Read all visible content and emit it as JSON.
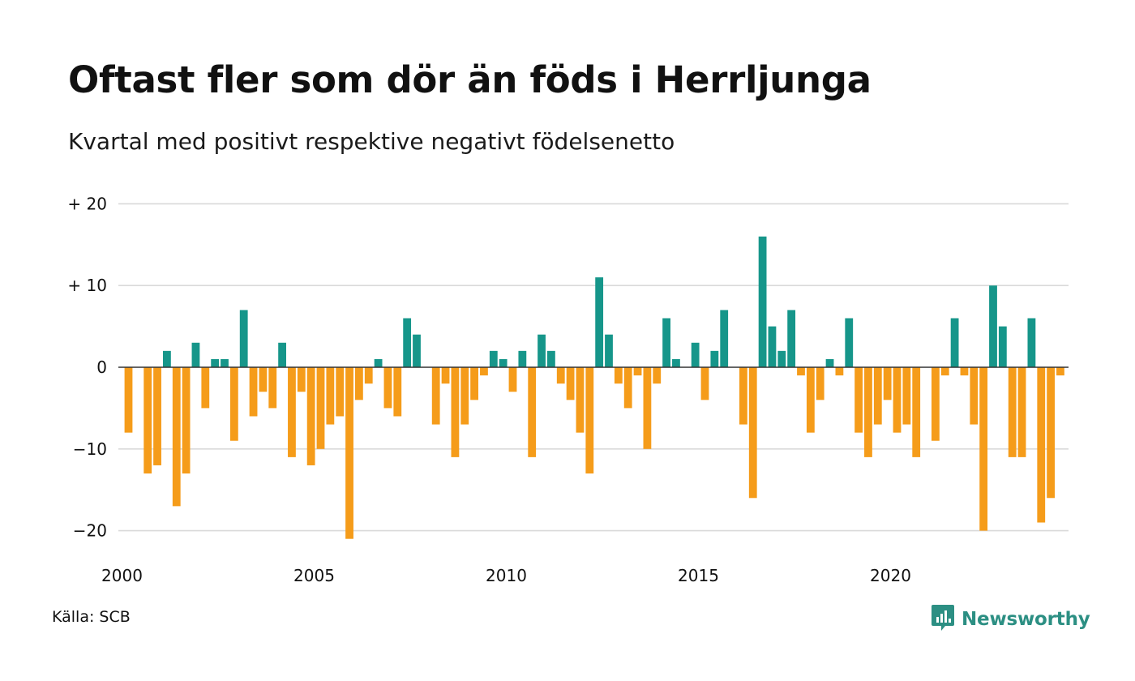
{
  "title": "Oftast fler som dör än föds i Herrljunga",
  "subtitle": "Kvartal med positivt respektive negativt födelsenetto",
  "source": "Källa: SCB",
  "brand": {
    "name": "Newsworthy",
    "icon": "newsworthy-logo-icon"
  },
  "colors": {
    "positive": "#16968a",
    "negative": "#f59c1a",
    "grid": "#d9d9d9",
    "zero": "#333333",
    "brand": "#2c8f83"
  },
  "chart_data": {
    "type": "bar",
    "title": "Oftast fler som dör än föds i Herrljunga",
    "subtitle": "Kvartal med positivt respektive negativt födelsenetto",
    "xlabel": "",
    "ylabel": "",
    "start_year": 2000,
    "xticks": [
      "2000",
      "2005",
      "2010",
      "2015",
      "2020"
    ],
    "yticks": [
      {
        "value": 20,
        "label": "+ 20"
      },
      {
        "value": 10,
        "label": "+ 10"
      },
      {
        "value": 0,
        "label": "0"
      },
      {
        "value": -10,
        "label": "−10"
      },
      {
        "value": -20,
        "label": "−20"
      }
    ],
    "ylim": [
      -21,
      20
    ],
    "grid": true,
    "values": [
      -8,
      0,
      -13,
      -12,
      2,
      -17,
      -13,
      3,
      -5,
      1,
      1,
      -9,
      7,
      -6,
      -3,
      -5,
      3,
      -11,
      -3,
      -12,
      -10,
      -7,
      -6,
      -21,
      -4,
      -2,
      1,
      -5,
      -6,
      6,
      4,
      0,
      -7,
      -2,
      -11,
      -7,
      -4,
      -1,
      2,
      1,
      -3,
      2,
      -11,
      4,
      2,
      -2,
      -4,
      -8,
      -13,
      11,
      4,
      -2,
      -5,
      -1,
      -10,
      -2,
      6,
      1,
      0,
      3,
      -4,
      2,
      7,
      0,
      -7,
      -16,
      16,
      5,
      2,
      7,
      -1,
      -8,
      -4,
      1,
      -1,
      6,
      -8,
      -11,
      -7,
      -4,
      -8,
      -7,
      -11,
      0,
      -9,
      -1,
      6,
      -1,
      -7,
      -20,
      10,
      5,
      -11,
      -11,
      6,
      -19,
      -16,
      -1
    ]
  }
}
